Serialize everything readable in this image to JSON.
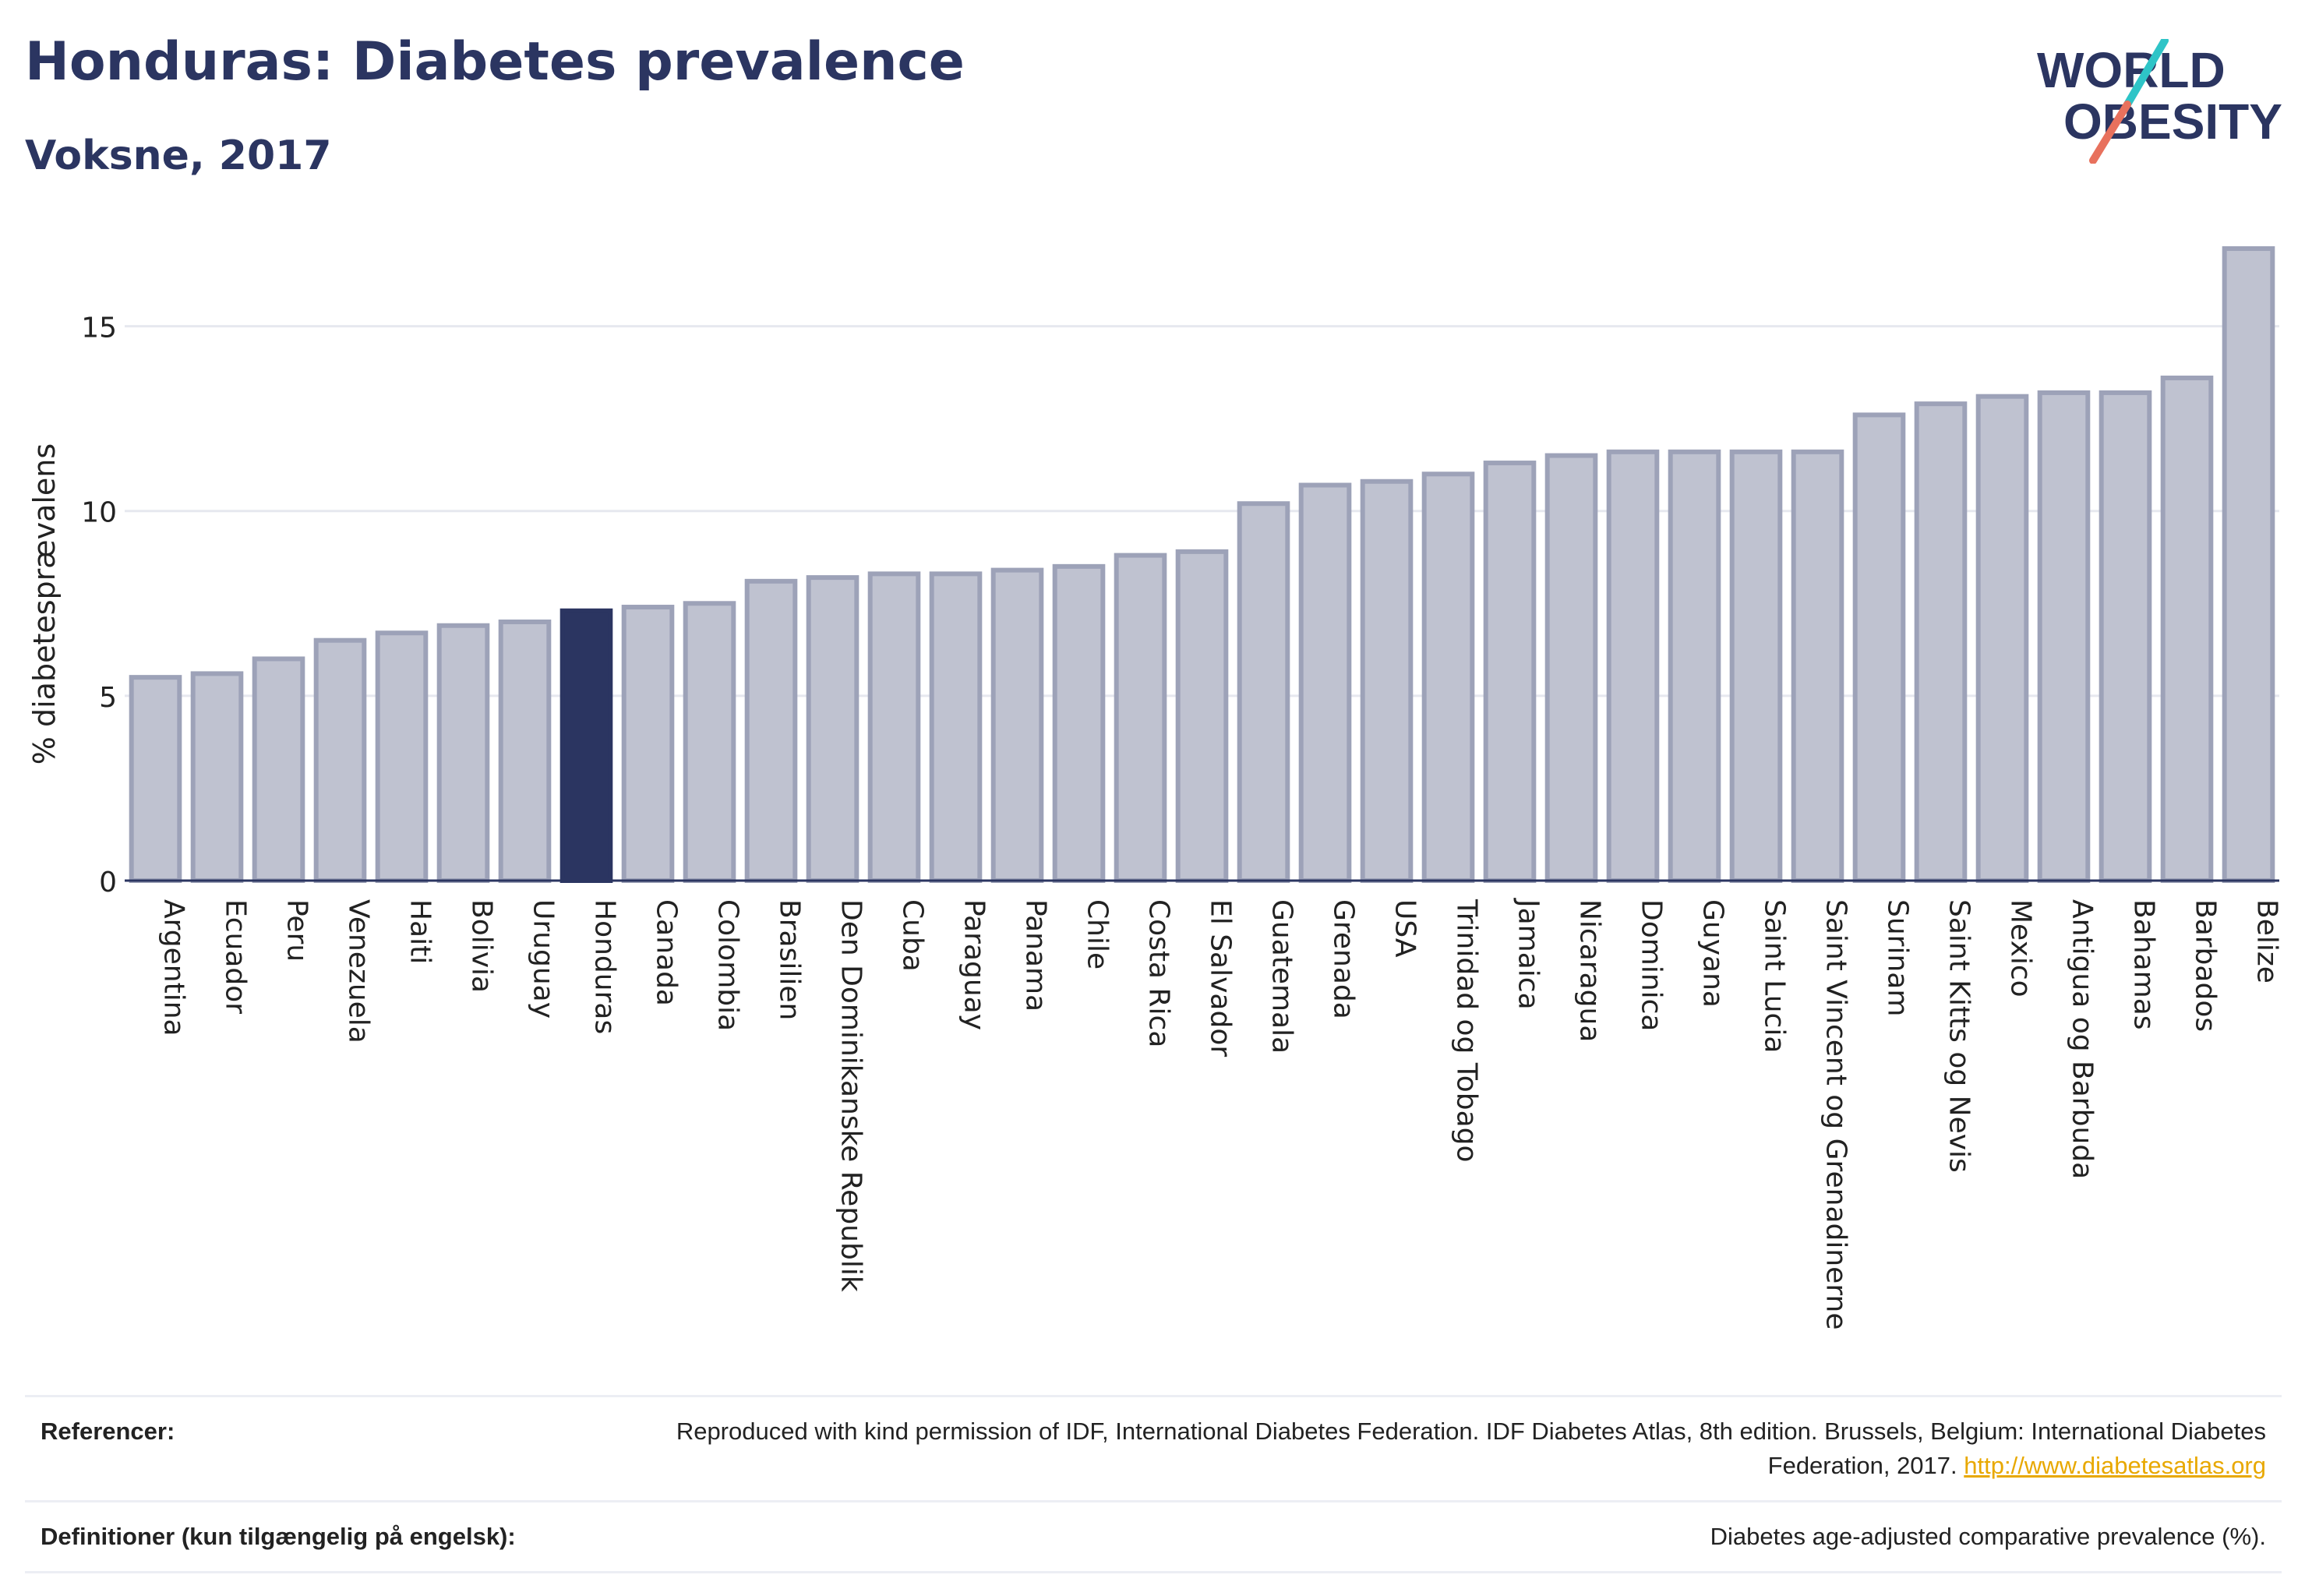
{
  "header": {
    "title": "Honduras: Diabetes prevalence",
    "subtitle": "Voksne, 2017"
  },
  "logo": {
    "line1": "WORLD",
    "line2": "OBESITY",
    "colors": {
      "text": "#2b3561",
      "slash_teal": "#2ec4c7",
      "slash_coral": "#e8715d"
    }
  },
  "chart_data": {
    "type": "bar",
    "title": "Honduras: Diabetes prevalence",
    "subtitle": "Voksne, 2017",
    "xlabel": "",
    "ylabel": "% diabetesprævalens",
    "ylim": [
      0,
      17.5
    ],
    "yticks": [
      0,
      5,
      10,
      15
    ],
    "grid": true,
    "highlight": "Honduras",
    "colors": {
      "bar": "#bfc2d0",
      "bar_border": "#9da2b8",
      "highlight": "#2b3561"
    },
    "categories": [
      "Argentina",
      "Ecuador",
      "Peru",
      "Venezuela",
      "Haiti",
      "Bolivia",
      "Uruguay",
      "Honduras",
      "Canada",
      "Colombia",
      "Brasilien",
      "Den Dominikanske Republik",
      "Cuba",
      "Paraguay",
      "Panama",
      "Chile",
      "Costa Rica",
      "El Salvador",
      "Guatemala",
      "Grenada",
      "USA",
      "Trinidad og Tobago",
      "Jamaica",
      "Nicaragua",
      "Dominica",
      "Guyana",
      "Saint Lucia",
      "Saint Vincent og Grenadinerne",
      "Surinam",
      "Saint Kitts og Nevis",
      "Mexico",
      "Antigua og Barbuda",
      "Bahamas",
      "Barbados",
      "Belize"
    ],
    "values": [
      5.5,
      5.6,
      6.0,
      6.5,
      6.7,
      6.9,
      7.0,
      7.3,
      7.4,
      7.5,
      8.1,
      8.2,
      8.3,
      8.3,
      8.4,
      8.5,
      8.8,
      8.9,
      10.2,
      10.7,
      10.8,
      11.0,
      11.3,
      11.5,
      11.6,
      11.6,
      11.6,
      11.6,
      12.6,
      12.9,
      13.1,
      13.2,
      13.2,
      13.6,
      17.1
    ]
  },
  "references": {
    "label": "Referencer:",
    "text": "Reproduced with kind permission of IDF, International Diabetes Federation. IDF Diabetes Atlas, 8th edition. Brussels, Belgium: International Diabetes Federation, 2017.",
    "link": "http://www.diabetesatlas.org"
  },
  "definitions": {
    "label": "Definitioner (kun tilgængelig på engelsk):",
    "text": "Diabetes age-adjusted comparative prevalence (%)."
  }
}
